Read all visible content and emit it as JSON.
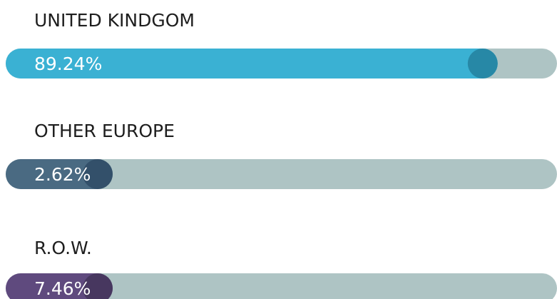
{
  "chart_data": {
    "type": "bar",
    "orientation": "horizontal",
    "categories": [
      "UNITED KINDGOM",
      "OTHER EUROPE",
      "R.O.W."
    ],
    "values": [
      89.24,
      2.62,
      7.46
    ],
    "value_labels": [
      "89.24%",
      "2.62%",
      "7.46%"
    ],
    "colors": [
      "#3ab1d3",
      "#4a6a82",
      "#5f4a7e"
    ],
    "end_colors": [
      "#2788a6",
      "#33506a",
      "#47375f"
    ],
    "track_color": "#aec4c4",
    "xlim": [
      0,
      100
    ]
  }
}
